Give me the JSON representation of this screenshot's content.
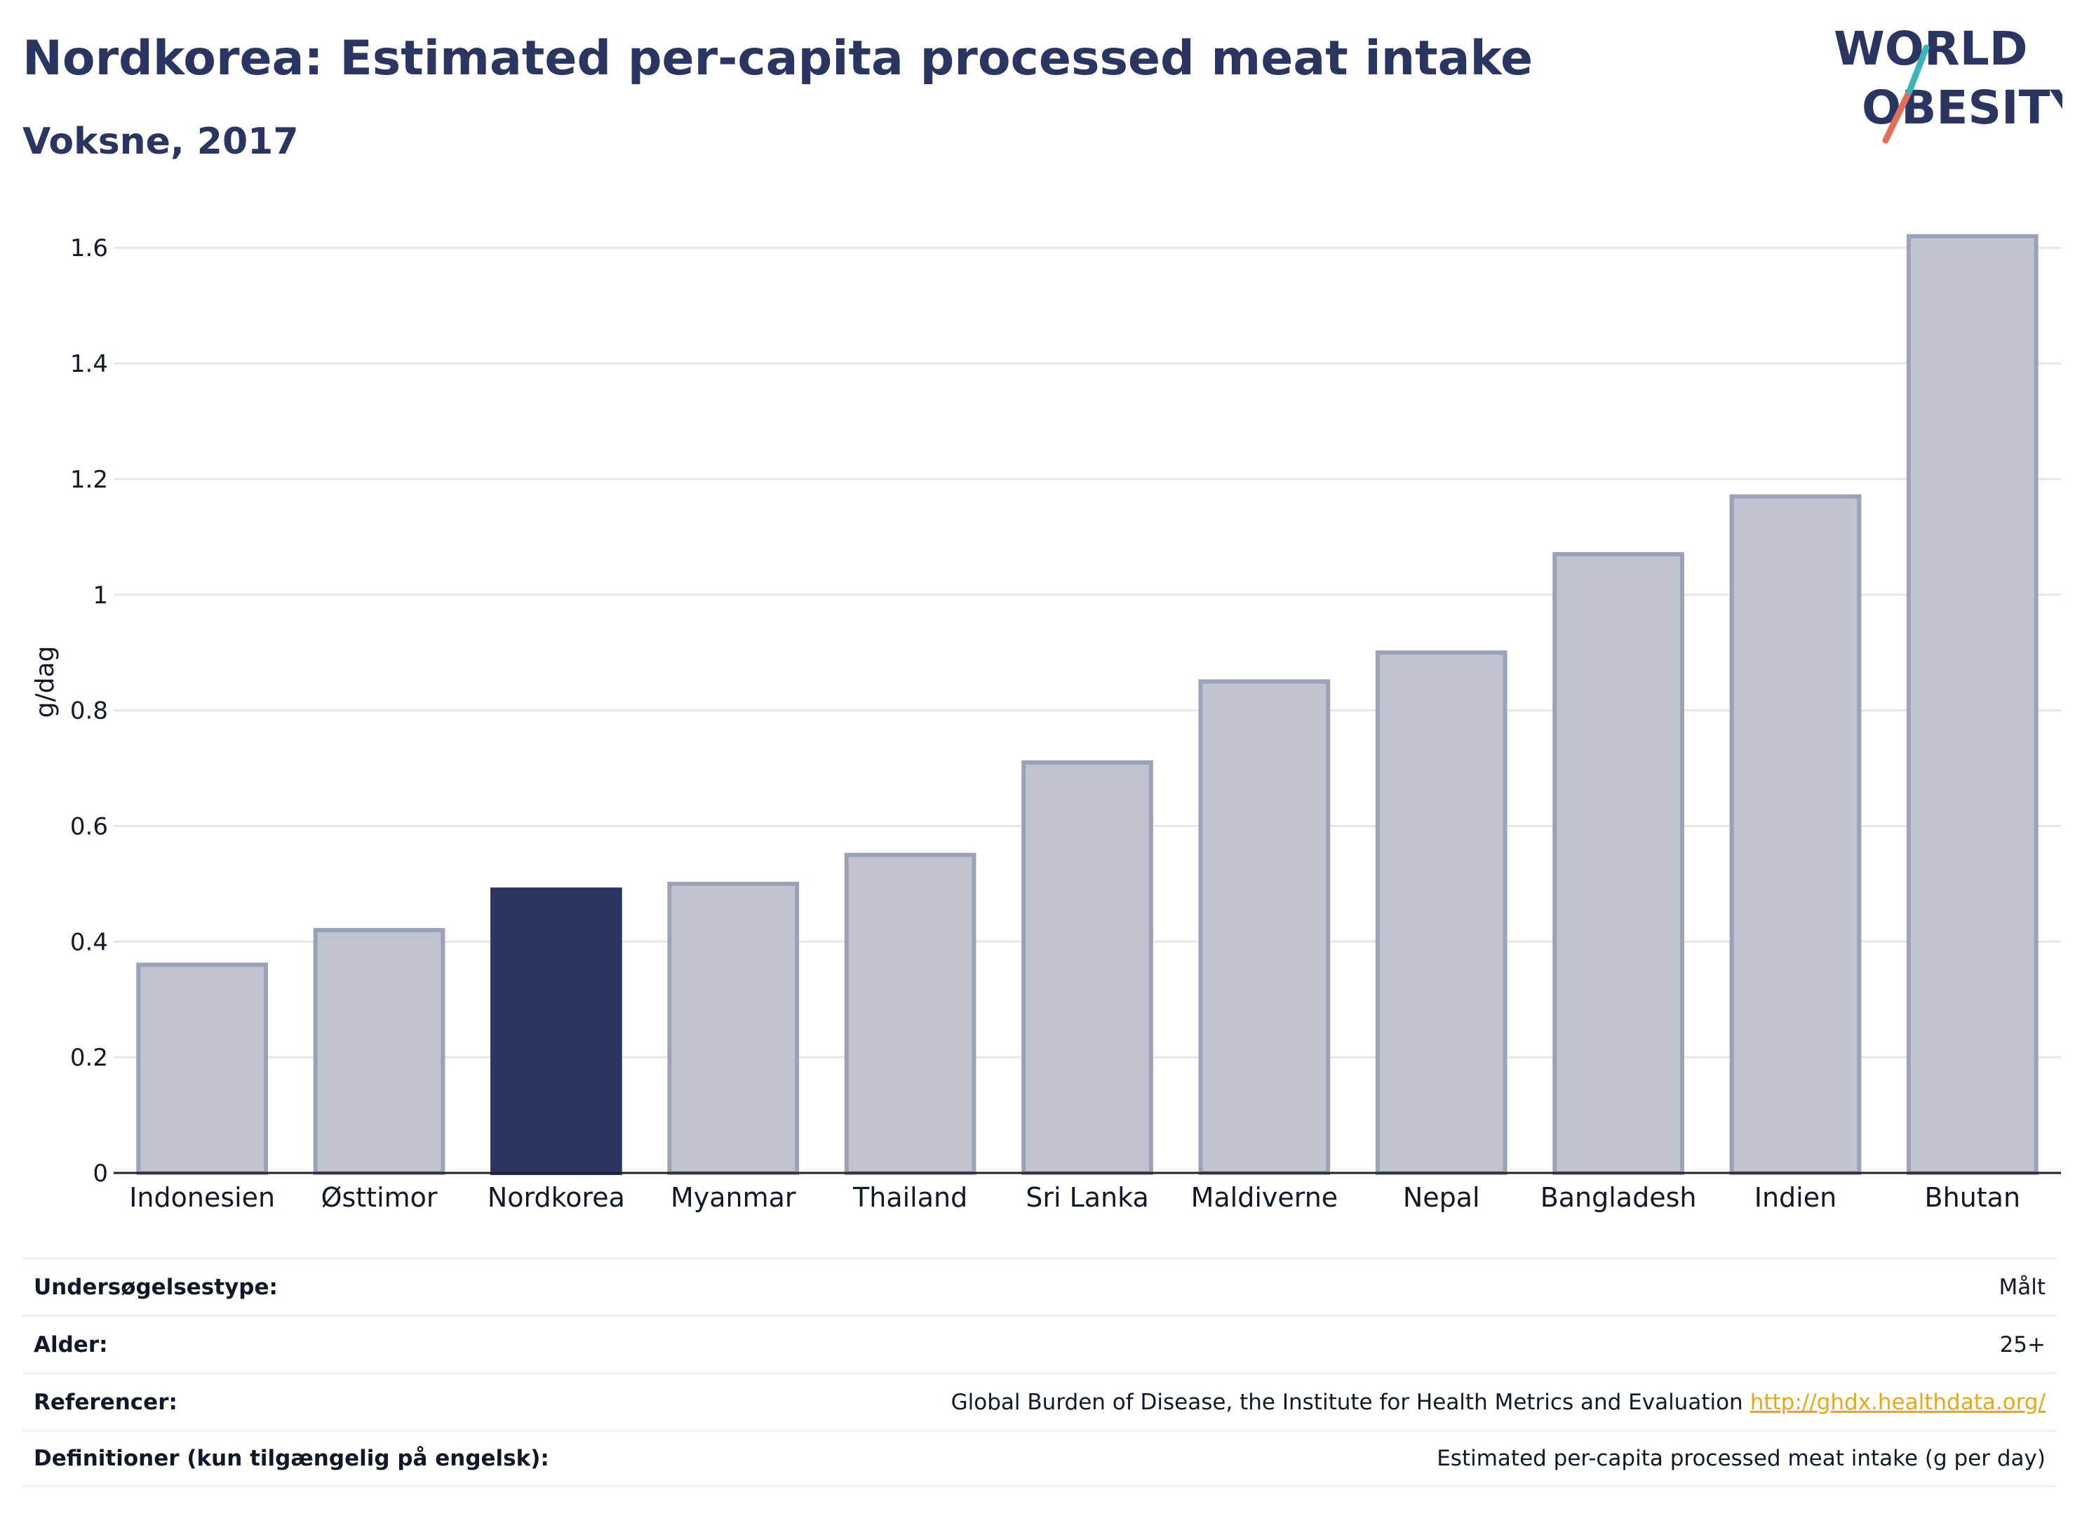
{
  "header": {
    "title": "Nordkorea: Estimated per-capita processed meat intake",
    "subtitle": "Voksne, 2017"
  },
  "logo": {
    "line1": "WORLD",
    "line2": "OBESITY",
    "colors": {
      "text": "#2b3561",
      "slash_top": "#3bb5b8",
      "slash_bottom": "#e0705a"
    }
  },
  "chart_data": {
    "type": "bar",
    "ylabel": "g/dag",
    "ylim": [
      0,
      1.65
    ],
    "yticks": [
      0,
      0.2,
      0.4,
      0.6,
      0.8,
      1,
      1.2,
      1.4,
      1.6
    ],
    "ytick_labels": [
      "0",
      "0.2",
      "0.4",
      "0.6",
      "0.8",
      "1",
      "1.2",
      "1.4",
      "1.6"
    ],
    "grid": true,
    "categories": [
      "Indonesien",
      "Østtimor",
      "Nordkorea",
      "Myanmar",
      "Thailand",
      "Sri Lanka",
      "Maldiverne",
      "Nepal",
      "Bangladesh",
      "Indien",
      "Bhutan"
    ],
    "values": [
      0.36,
      0.42,
      0.49,
      0.5,
      0.55,
      0.71,
      0.85,
      0.9,
      1.07,
      1.17,
      1.62
    ],
    "highlight": "Nordkorea",
    "colors": {
      "default": "#c0c4d0",
      "default_stroke": "#9ba2b8",
      "highlight": "#2b3561"
    }
  },
  "info": {
    "rows": [
      {
        "label": "Undersøgelsestype:",
        "value": "Målt"
      },
      {
        "label": "Alder:",
        "value": "25+"
      },
      {
        "label": "Referencer:",
        "value": "Global Burden of Disease, the Institute for Health Metrics and Evaluation",
        "link": "http://ghdx.healthdata.org/"
      },
      {
        "label": "Definitioner (kun tilgængelig på engelsk):",
        "value": "Estimated per-capita processed meat intake (g per day)"
      }
    ]
  }
}
